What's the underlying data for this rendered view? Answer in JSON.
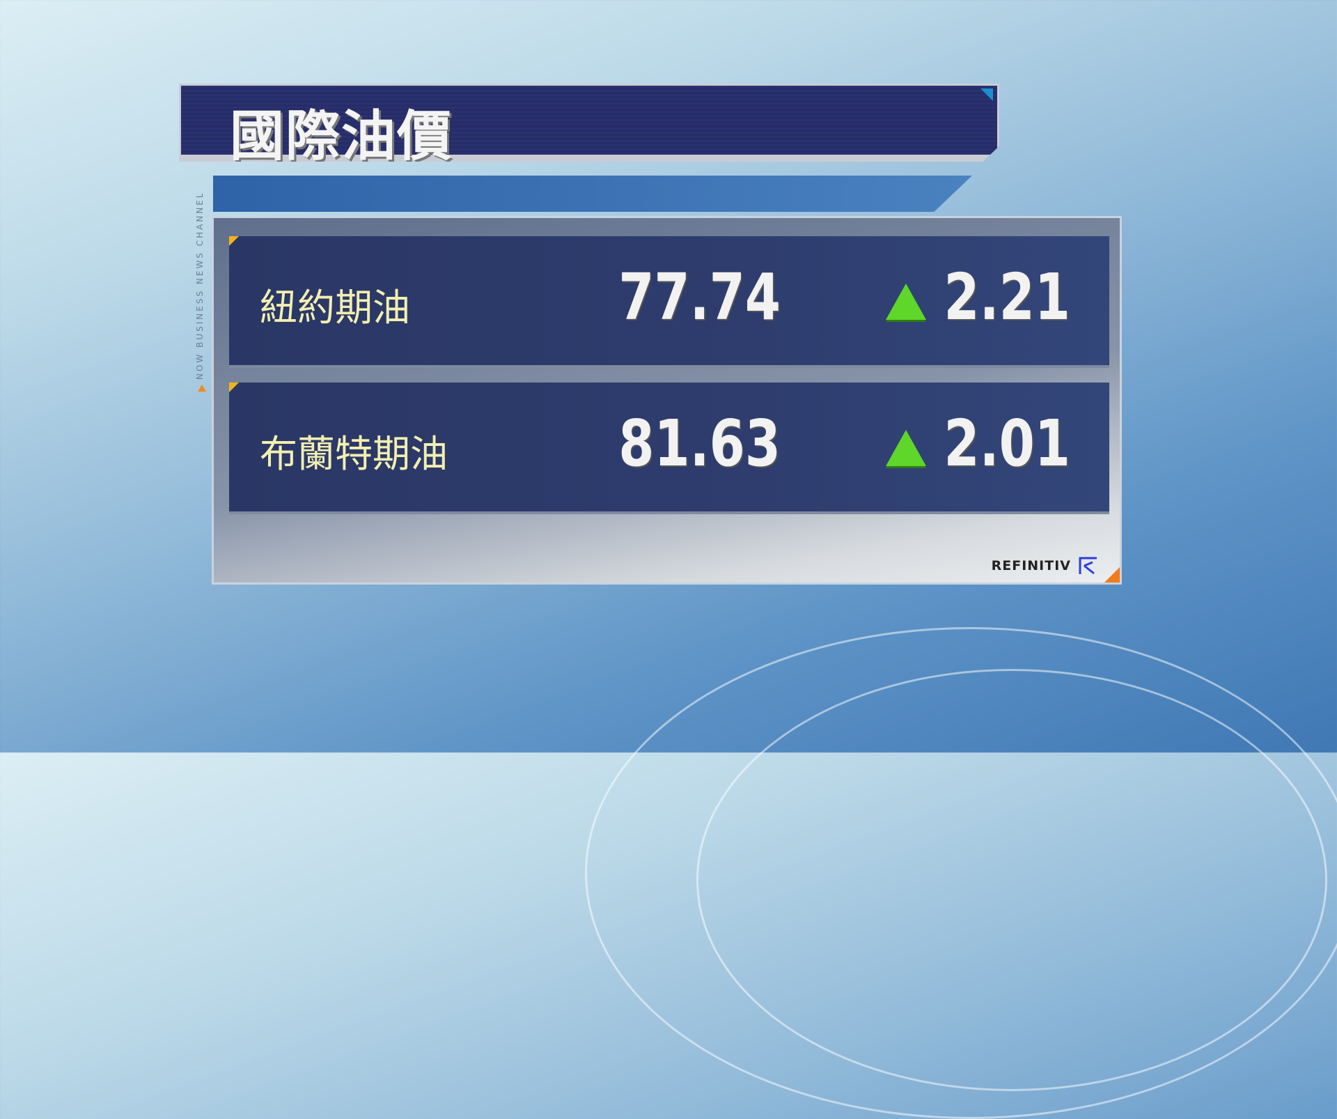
{
  "title": "國際油價",
  "side_label": "NOW BUSINESS NEWS CHANNEL",
  "rows": [
    {
      "name": "紐約期油",
      "price": "77.74",
      "direction": "up",
      "change": "2.21"
    },
    {
      "name": "布蘭特期油",
      "price": "81.63",
      "direction": "up",
      "change": "2.01"
    }
  ],
  "source": "REFINITIV",
  "colors": {
    "up_arrow": "#5fd62a",
    "label": "#f2efb0",
    "accent_orange": "#f07c1a",
    "title_bar": "#2a3170"
  },
  "icons": {
    "up": "triangle-up-icon",
    "logo": "refinitiv-logo"
  }
}
